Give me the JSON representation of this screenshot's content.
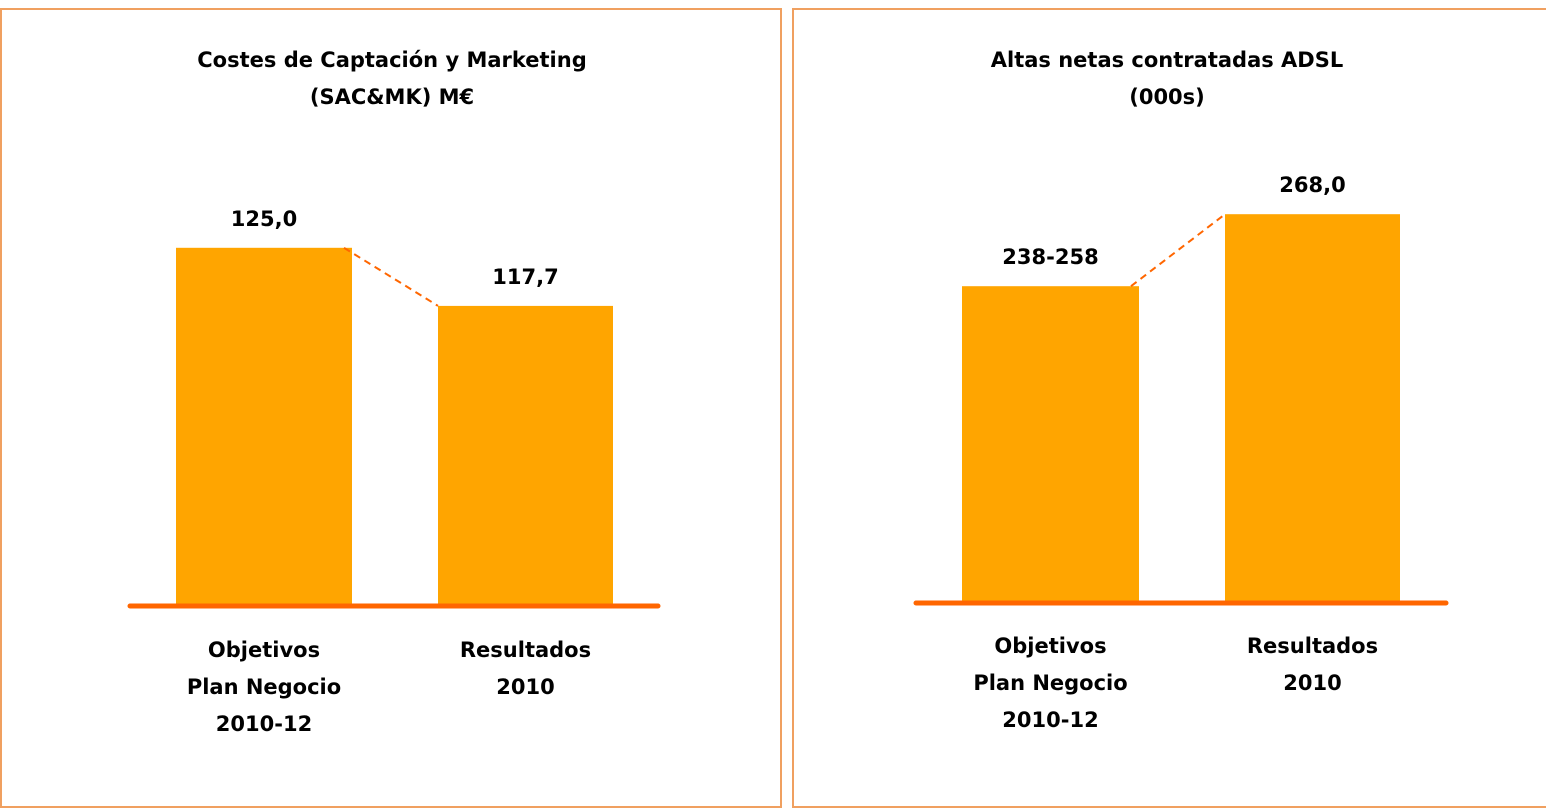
{
  "chart_data": [
    {
      "type": "bar",
      "title": "Costes de Captación y Marketing\n(SAC&MK) M€",
      "categories": [
        "Objetivos\nPlan Negocio\n2010-12",
        "Resultados\n2010"
      ],
      "values": [
        125.0,
        117.7
      ],
      "value_labels": [
        "125,0",
        "117,7"
      ],
      "color": "#ffa500",
      "ylim": [
        80,
        130
      ]
    },
    {
      "type": "bar",
      "title": "Altas netas contratadas ADSL\n(000s)",
      "categories": [
        "Objetivos\nPlan Negocio\n2010-12",
        "Resultados\n2010"
      ],
      "values": [
        248,
        268
      ],
      "value_labels": [
        "238-258",
        "268,0"
      ],
      "color": "#ffa500",
      "ylim": [
        160,
        280
      ]
    }
  ]
}
